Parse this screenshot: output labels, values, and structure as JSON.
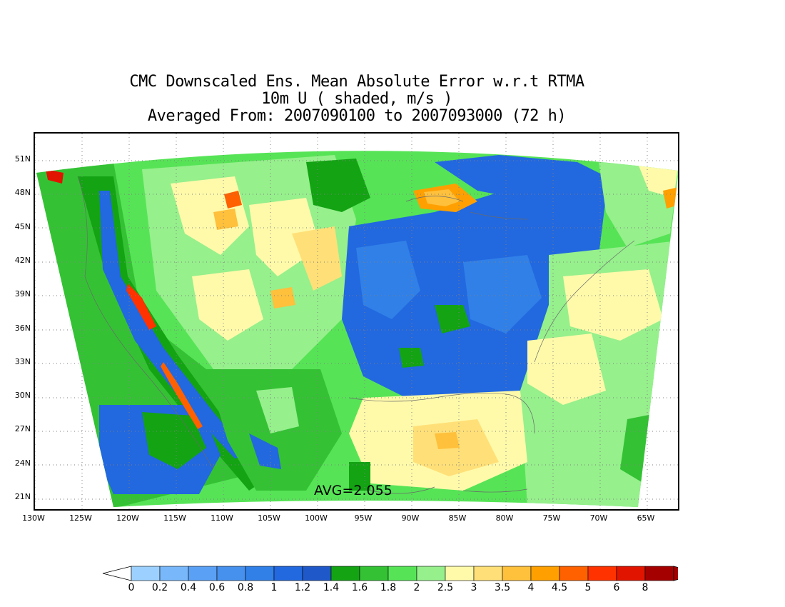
{
  "title": {
    "line1": "CMC Downscaled Ens. Mean Absolute Error w.r.t RTMA",
    "line2": "10m U ( shaded, m/s )",
    "line3": "Averaged From: 2007090100 to 2007093000 (72 h)"
  },
  "map": {
    "region": "Continental United States",
    "lat_labels": [
      "51N",
      "48N",
      "45N",
      "42N",
      "39N",
      "36N",
      "33N",
      "30N",
      "27N",
      "24N",
      "21N"
    ],
    "lat_values": [
      51,
      48,
      45,
      42,
      39,
      36,
      33,
      30,
      27,
      24,
      21
    ],
    "lon_labels": [
      "130W",
      "125W",
      "120W",
      "115W",
      "110W",
      "105W",
      "100W",
      "95W",
      "90W",
      "85W",
      "80W",
      "75W",
      "70W",
      "65W"
    ],
    "lon_values": [
      -130,
      -125,
      -120,
      -115,
      -110,
      -105,
      -100,
      -95,
      -90,
      -85,
      -80,
      -75,
      -70,
      -65
    ],
    "gridlines": "dotted",
    "avg_text": "AVG=2.055"
  },
  "colorbar": {
    "labels": [
      "0",
      "0.2",
      "0.4",
      "0.6",
      "0.8",
      "1",
      "1.2",
      "1.4",
      "1.6",
      "1.8",
      "2",
      "2.5",
      "3",
      "3.5",
      "4",
      "4.5",
      "5",
      "6",
      "8"
    ],
    "colors": [
      "#9bd0ff",
      "#78b8fa",
      "#5aa0f5",
      "#4690ee",
      "#3080e8",
      "#2268df",
      "#1f58c8",
      "#13a313",
      "#34c234",
      "#56e456",
      "#96f08c",
      "#fffaaa",
      "#ffe078",
      "#ffc03c",
      "#ffa000",
      "#ff6000",
      "#ff3200",
      "#e11400",
      "#a50000"
    ],
    "left_arrow_color": "#ffffff",
    "right_arrow_color": "#a50000"
  }
}
